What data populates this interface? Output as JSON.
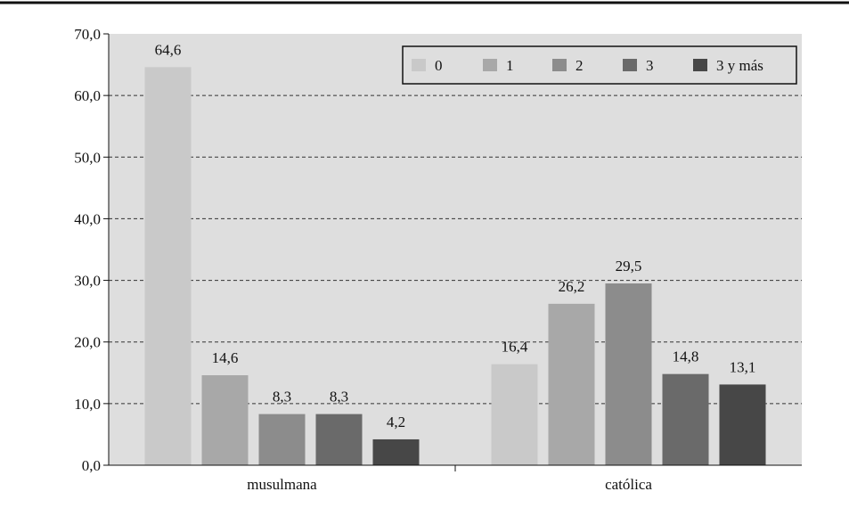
{
  "chart_data": {
    "type": "bar",
    "title": "",
    "xlabel": "",
    "ylabel": "",
    "categories": [
      "musulmana",
      "católica"
    ],
    "series": [
      {
        "name": "0",
        "values": [
          64.6,
          16.4
        ],
        "labels": [
          "64,6",
          "16,4"
        ],
        "color": "#c9c9c9"
      },
      {
        "name": "1",
        "values": [
          14.6,
          26.2
        ],
        "labels": [
          "14,6",
          "26,2"
        ],
        "color": "#a8a8a8"
      },
      {
        "name": "2",
        "values": [
          8.3,
          29.5
        ],
        "labels": [
          "8,3",
          "29,5"
        ],
        "color": "#8c8c8c"
      },
      {
        "name": "3",
        "values": [
          8.3,
          14.8
        ],
        "labels": [
          "8,3",
          "14,8"
        ],
        "color": "#6a6a6a"
      },
      {
        "name": "3 y más",
        "values": [
          4.2,
          13.1
        ],
        "labels": [
          "4,2",
          "13,1"
        ],
        "color": "#474747"
      }
    ],
    "ylim": [
      0,
      70
    ],
    "yticks": [
      0,
      10,
      20,
      30,
      40,
      50,
      60,
      70
    ],
    "ytick_labels": [
      "0,0",
      "10,0",
      "20,0",
      "30,0",
      "40,0",
      "50,0",
      "60,0",
      "70,0"
    ],
    "grid": true,
    "grid_style": "dashed",
    "legend_position": "top-right",
    "plot_background": "#dedede"
  }
}
